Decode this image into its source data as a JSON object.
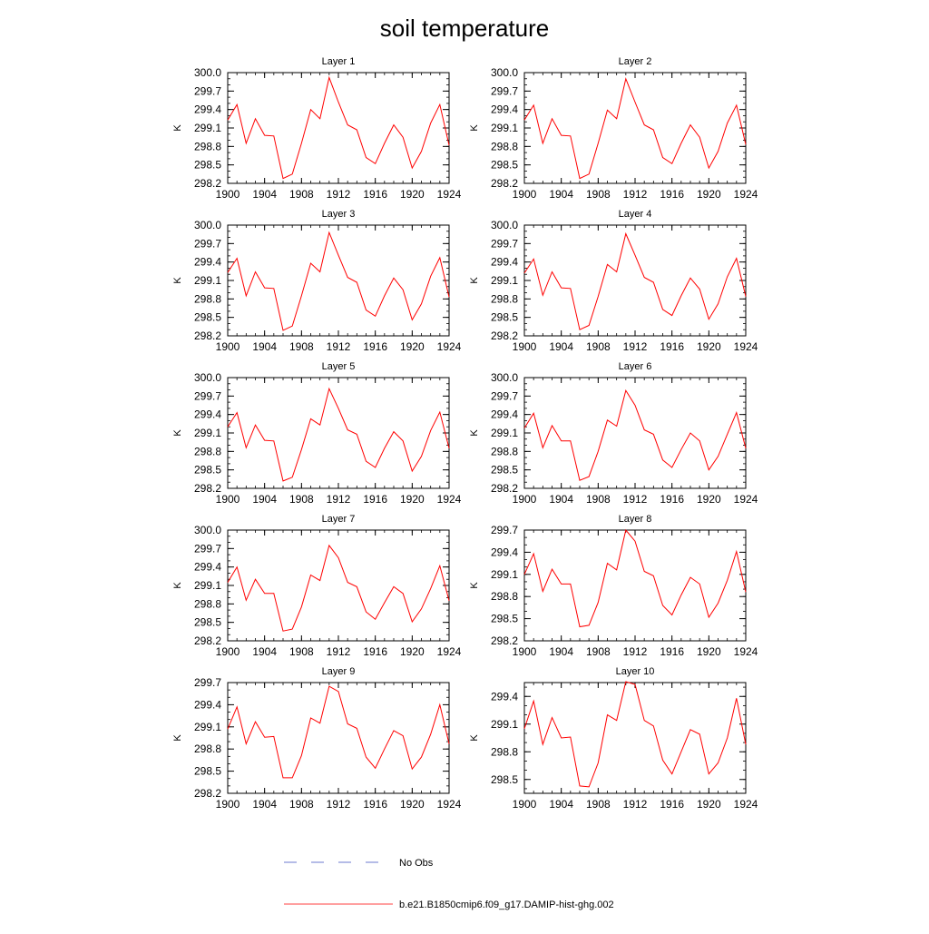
{
  "figure": {
    "title": "soil temperature",
    "line_color": "#ff0000",
    "obs_color": "#3b4cc0"
  },
  "legend": {
    "entries": [
      {
        "label": "No Obs",
        "style": "dashed",
        "color": "#3b4cc0"
      },
      {
        "label": "b.e21.B1850cmip6.f09_g17.DAMIP-hist-ghg.002",
        "style": "solid",
        "color": "#ff0000"
      }
    ]
  },
  "chart_data": [
    {
      "type": "line",
      "title": "Layer 1",
      "xlabel": "",
      "ylabel": "K",
      "xlim": [
        1900,
        1924
      ],
      "ylim": [
        298.2,
        300.0
      ],
      "xticks": [
        "1900",
        "1904",
        "1908",
        "1912",
        "1916",
        "1920",
        "1924"
      ],
      "yticks": [
        "298.2",
        "298.5",
        "298.8",
        "299.1",
        "299.4",
        "299.7",
        "300.0"
      ],
      "x": [
        1900,
        1901,
        1902,
        1903,
        1904,
        1905,
        1906,
        1907,
        1908,
        1909,
        1910,
        1911,
        1912,
        1913,
        1914,
        1915,
        1916,
        1917,
        1918,
        1919,
        1920,
        1921,
        1922,
        1923,
        1924
      ],
      "series": [
        {
          "name": "b.e21.B1850cmip6.f09_g17.DAMIP-hist-ghg.002",
          "values": [
            299.23,
            299.48,
            298.85,
            299.25,
            298.98,
            298.97,
            298.28,
            298.35,
            298.85,
            299.4,
            299.25,
            299.92,
            299.52,
            299.15,
            299.07,
            298.62,
            298.52,
            298.85,
            299.15,
            298.95,
            298.45,
            298.72,
            299.18,
            299.48,
            298.82
          ]
        }
      ]
    },
    {
      "type": "line",
      "title": "Layer 2",
      "xlabel": "",
      "ylabel": "K",
      "xlim": [
        1900,
        1924
      ],
      "ylim": [
        298.2,
        300.0
      ],
      "xticks": [
        "1900",
        "1904",
        "1908",
        "1912",
        "1916",
        "1920",
        "1924"
      ],
      "yticks": [
        "298.2",
        "298.5",
        "298.8",
        "299.1",
        "299.4",
        "299.7",
        "300.0"
      ],
      "x": [
        1900,
        1901,
        1902,
        1903,
        1904,
        1905,
        1906,
        1907,
        1908,
        1909,
        1910,
        1911,
        1912,
        1913,
        1914,
        1915,
        1916,
        1917,
        1918,
        1919,
        1920,
        1921,
        1922,
        1923,
        1924
      ],
      "series": [
        {
          "name": "b.e21.B1850cmip6.f09_g17.DAMIP-hist-ghg.002",
          "values": [
            299.23,
            299.47,
            298.85,
            299.25,
            298.98,
            298.97,
            298.28,
            298.35,
            298.85,
            299.39,
            299.25,
            299.9,
            299.52,
            299.15,
            299.07,
            298.62,
            298.52,
            298.85,
            299.15,
            298.95,
            298.45,
            298.72,
            299.18,
            299.47,
            298.83
          ]
        }
      ]
    },
    {
      "type": "line",
      "title": "Layer 3",
      "xlabel": "",
      "ylabel": "K",
      "xlim": [
        1900,
        1924
      ],
      "ylim": [
        298.2,
        300.0
      ],
      "xticks": [
        "1900",
        "1904",
        "1908",
        "1912",
        "1916",
        "1920",
        "1924"
      ],
      "yticks": [
        "298.2",
        "298.5",
        "298.8",
        "299.1",
        "299.4",
        "299.7",
        "300.0"
      ],
      "x": [
        1900,
        1901,
        1902,
        1903,
        1904,
        1905,
        1906,
        1907,
        1908,
        1909,
        1910,
        1911,
        1912,
        1913,
        1914,
        1915,
        1916,
        1917,
        1918,
        1919,
        1920,
        1921,
        1922,
        1923,
        1924
      ],
      "series": [
        {
          "name": "b.e21.B1850cmip6.f09_g17.DAMIP-hist-ghg.002",
          "values": [
            299.23,
            299.46,
            298.85,
            299.24,
            298.98,
            298.97,
            298.29,
            298.36,
            298.85,
            299.38,
            299.24,
            299.88,
            299.51,
            299.15,
            299.07,
            298.62,
            298.52,
            298.85,
            299.14,
            298.95,
            298.46,
            298.72,
            299.17,
            299.47,
            298.83
          ]
        }
      ]
    },
    {
      "type": "line",
      "title": "Layer 4",
      "xlabel": "",
      "ylabel": "K",
      "xlim": [
        1900,
        1924
      ],
      "ylim": [
        298.2,
        300.0
      ],
      "xticks": [
        "1900",
        "1904",
        "1908",
        "1912",
        "1916",
        "1920",
        "1924"
      ],
      "yticks": [
        "298.2",
        "298.5",
        "298.8",
        "299.1",
        "299.4",
        "299.7",
        "300.0"
      ],
      "x": [
        1900,
        1901,
        1902,
        1903,
        1904,
        1905,
        1906,
        1907,
        1908,
        1909,
        1910,
        1911,
        1912,
        1913,
        1914,
        1915,
        1916,
        1917,
        1918,
        1919,
        1920,
        1921,
        1922,
        1923,
        1924
      ],
      "series": [
        {
          "name": "b.e21.B1850cmip6.f09_g17.DAMIP-hist-ghg.002",
          "values": [
            299.22,
            299.45,
            298.86,
            299.24,
            298.98,
            298.97,
            298.3,
            298.37,
            298.84,
            299.36,
            299.24,
            299.86,
            299.51,
            299.15,
            299.07,
            298.63,
            298.53,
            298.85,
            299.14,
            298.96,
            298.47,
            298.72,
            299.16,
            299.46,
            298.84
          ]
        }
      ]
    },
    {
      "type": "line",
      "title": "Layer 5",
      "xlabel": "",
      "ylabel": "K",
      "xlim": [
        1900,
        1924
      ],
      "ylim": [
        298.2,
        300.0
      ],
      "xticks": [
        "1900",
        "1904",
        "1908",
        "1912",
        "1916",
        "1920",
        "1924"
      ],
      "yticks": [
        "298.2",
        "298.5",
        "298.8",
        "299.1",
        "299.4",
        "299.7",
        "300.0"
      ],
      "x": [
        1900,
        1901,
        1902,
        1903,
        1904,
        1905,
        1906,
        1907,
        1908,
        1909,
        1910,
        1911,
        1912,
        1913,
        1914,
        1915,
        1916,
        1917,
        1918,
        1919,
        1920,
        1921,
        1922,
        1923,
        1924
      ],
      "series": [
        {
          "name": "b.e21.B1850cmip6.f09_g17.DAMIP-hist-ghg.002",
          "values": [
            299.2,
            299.43,
            298.86,
            299.23,
            298.98,
            298.97,
            298.32,
            298.38,
            298.83,
            299.33,
            299.23,
            299.82,
            299.5,
            299.15,
            299.08,
            298.64,
            298.54,
            298.85,
            299.12,
            298.97,
            298.48,
            298.72,
            299.14,
            299.44,
            298.85
          ]
        }
      ]
    },
    {
      "type": "line",
      "title": "Layer 6",
      "xlabel": "",
      "ylabel": "K",
      "xlim": [
        1900,
        1924
      ],
      "ylim": [
        298.2,
        300.0
      ],
      "xticks": [
        "1900",
        "1904",
        "1908",
        "1912",
        "1916",
        "1920",
        "1924"
      ],
      "yticks": [
        "298.2",
        "298.5",
        "298.8",
        "299.1",
        "299.4",
        "299.7",
        "300.0"
      ],
      "x": [
        1900,
        1901,
        1902,
        1903,
        1904,
        1905,
        1906,
        1907,
        1908,
        1909,
        1910,
        1911,
        1912,
        1913,
        1914,
        1915,
        1916,
        1917,
        1918,
        1919,
        1920,
        1921,
        1922,
        1923,
        1924
      ],
      "series": [
        {
          "name": "b.e21.B1850cmip6.f09_g17.DAMIP-hist-ghg.002",
          "values": [
            299.18,
            299.42,
            298.86,
            299.22,
            298.97,
            298.97,
            298.33,
            298.39,
            298.8,
            299.31,
            299.21,
            299.79,
            299.55,
            299.15,
            299.08,
            298.66,
            298.54,
            298.83,
            299.1,
            298.97,
            298.5,
            298.72,
            299.08,
            299.43,
            298.85
          ]
        }
      ]
    },
    {
      "type": "line",
      "title": "Layer 7",
      "xlabel": "",
      "ylabel": "K",
      "xlim": [
        1900,
        1924
      ],
      "ylim": [
        298.2,
        300.0
      ],
      "xticks": [
        "1900",
        "1904",
        "1908",
        "1912",
        "1916",
        "1920",
        "1924"
      ],
      "yticks": [
        "298.2",
        "298.5",
        "298.8",
        "299.1",
        "299.4",
        "299.7",
        "300.0"
      ],
      "x": [
        1900,
        1901,
        1902,
        1903,
        1904,
        1905,
        1906,
        1907,
        1908,
        1909,
        1910,
        1911,
        1912,
        1913,
        1914,
        1915,
        1916,
        1917,
        1918,
        1919,
        1920,
        1921,
        1922,
        1923,
        1924
      ],
      "series": [
        {
          "name": "b.e21.B1850cmip6.f09_g17.DAMIP-hist-ghg.002",
          "values": [
            299.15,
            299.4,
            298.86,
            299.2,
            298.97,
            298.97,
            298.36,
            298.39,
            298.75,
            299.27,
            299.18,
            299.75,
            299.55,
            299.15,
            299.08,
            298.67,
            298.55,
            298.82,
            299.08,
            298.97,
            298.51,
            298.72,
            299.05,
            299.42,
            298.85
          ]
        }
      ]
    },
    {
      "type": "line",
      "title": "Layer 8",
      "xlabel": "",
      "ylabel": "K",
      "xlim": [
        1900,
        1924
      ],
      "ylim": [
        298.2,
        299.7
      ],
      "xticks": [
        "1900",
        "1904",
        "1908",
        "1912",
        "1916",
        "1920",
        "1924"
      ],
      "yticks": [
        "298.2",
        "298.5",
        "298.8",
        "299.1",
        "299.4",
        "299.7"
      ],
      "x": [
        1900,
        1901,
        1902,
        1903,
        1904,
        1905,
        1906,
        1907,
        1908,
        1909,
        1910,
        1911,
        1912,
        1913,
        1914,
        1915,
        1916,
        1917,
        1918,
        1919,
        1920,
        1921,
        1922,
        1923,
        1924
      ],
      "series": [
        {
          "name": "b.e21.B1850cmip6.f09_g17.DAMIP-hist-ghg.002",
          "values": [
            299.1,
            299.38,
            298.87,
            299.17,
            298.97,
            298.97,
            298.39,
            298.41,
            298.72,
            299.25,
            299.16,
            299.7,
            299.55,
            299.14,
            299.08,
            298.68,
            298.55,
            298.82,
            299.06,
            298.97,
            298.52,
            298.71,
            299.02,
            299.41,
            298.86
          ]
        }
      ]
    },
    {
      "type": "line",
      "title": "Layer 9",
      "xlabel": "",
      "ylabel": "K",
      "xlim": [
        1900,
        1924
      ],
      "ylim": [
        298.2,
        299.7
      ],
      "xticks": [
        "1900",
        "1904",
        "1908",
        "1912",
        "1916",
        "1920",
        "1924"
      ],
      "yticks": [
        "298.2",
        "298.5",
        "298.8",
        "299.1",
        "299.4",
        "299.7"
      ],
      "x": [
        1900,
        1901,
        1902,
        1903,
        1904,
        1905,
        1906,
        1907,
        1908,
        1909,
        1910,
        1911,
        1912,
        1913,
        1914,
        1915,
        1916,
        1917,
        1918,
        1919,
        1920,
        1921,
        1922,
        1923,
        1924
      ],
      "series": [
        {
          "name": "b.e21.B1850cmip6.f09_g17.DAMIP-hist-ghg.002",
          "values": [
            299.07,
            299.37,
            298.87,
            299.17,
            298.96,
            298.97,
            298.41,
            298.41,
            298.71,
            299.22,
            299.15,
            299.65,
            299.58,
            299.14,
            299.08,
            298.69,
            298.54,
            298.8,
            299.05,
            298.98,
            298.53,
            298.69,
            299.0,
            299.4,
            298.87
          ]
        }
      ]
    },
    {
      "type": "line",
      "title": "Layer 10",
      "xlabel": "",
      "ylabel": "K",
      "xlim": [
        1900,
        1924
      ],
      "ylim": [
        298.35,
        299.55
      ],
      "xticks": [
        "1900",
        "1904",
        "1908",
        "1912",
        "1916",
        "1920",
        "1924"
      ],
      "yticks": [
        "298.5",
        "298.8",
        "299.1",
        "299.4"
      ],
      "x": [
        1900,
        1901,
        1902,
        1903,
        1904,
        1905,
        1906,
        1907,
        1908,
        1909,
        1910,
        1911,
        1912,
        1913,
        1914,
        1915,
        1916,
        1917,
        1918,
        1919,
        1920,
        1921,
        1922,
        1923,
        1924
      ],
      "series": [
        {
          "name": "b.e21.B1850cmip6.f09_g17.DAMIP-hist-ghg.002",
          "values": [
            299.05,
            299.35,
            298.88,
            299.17,
            298.95,
            298.96,
            298.43,
            298.42,
            298.68,
            299.2,
            299.14,
            299.56,
            299.53,
            299.14,
            299.08,
            298.71,
            298.56,
            298.8,
            299.04,
            298.99,
            298.56,
            298.68,
            298.95,
            299.38,
            298.88
          ]
        }
      ]
    }
  ]
}
